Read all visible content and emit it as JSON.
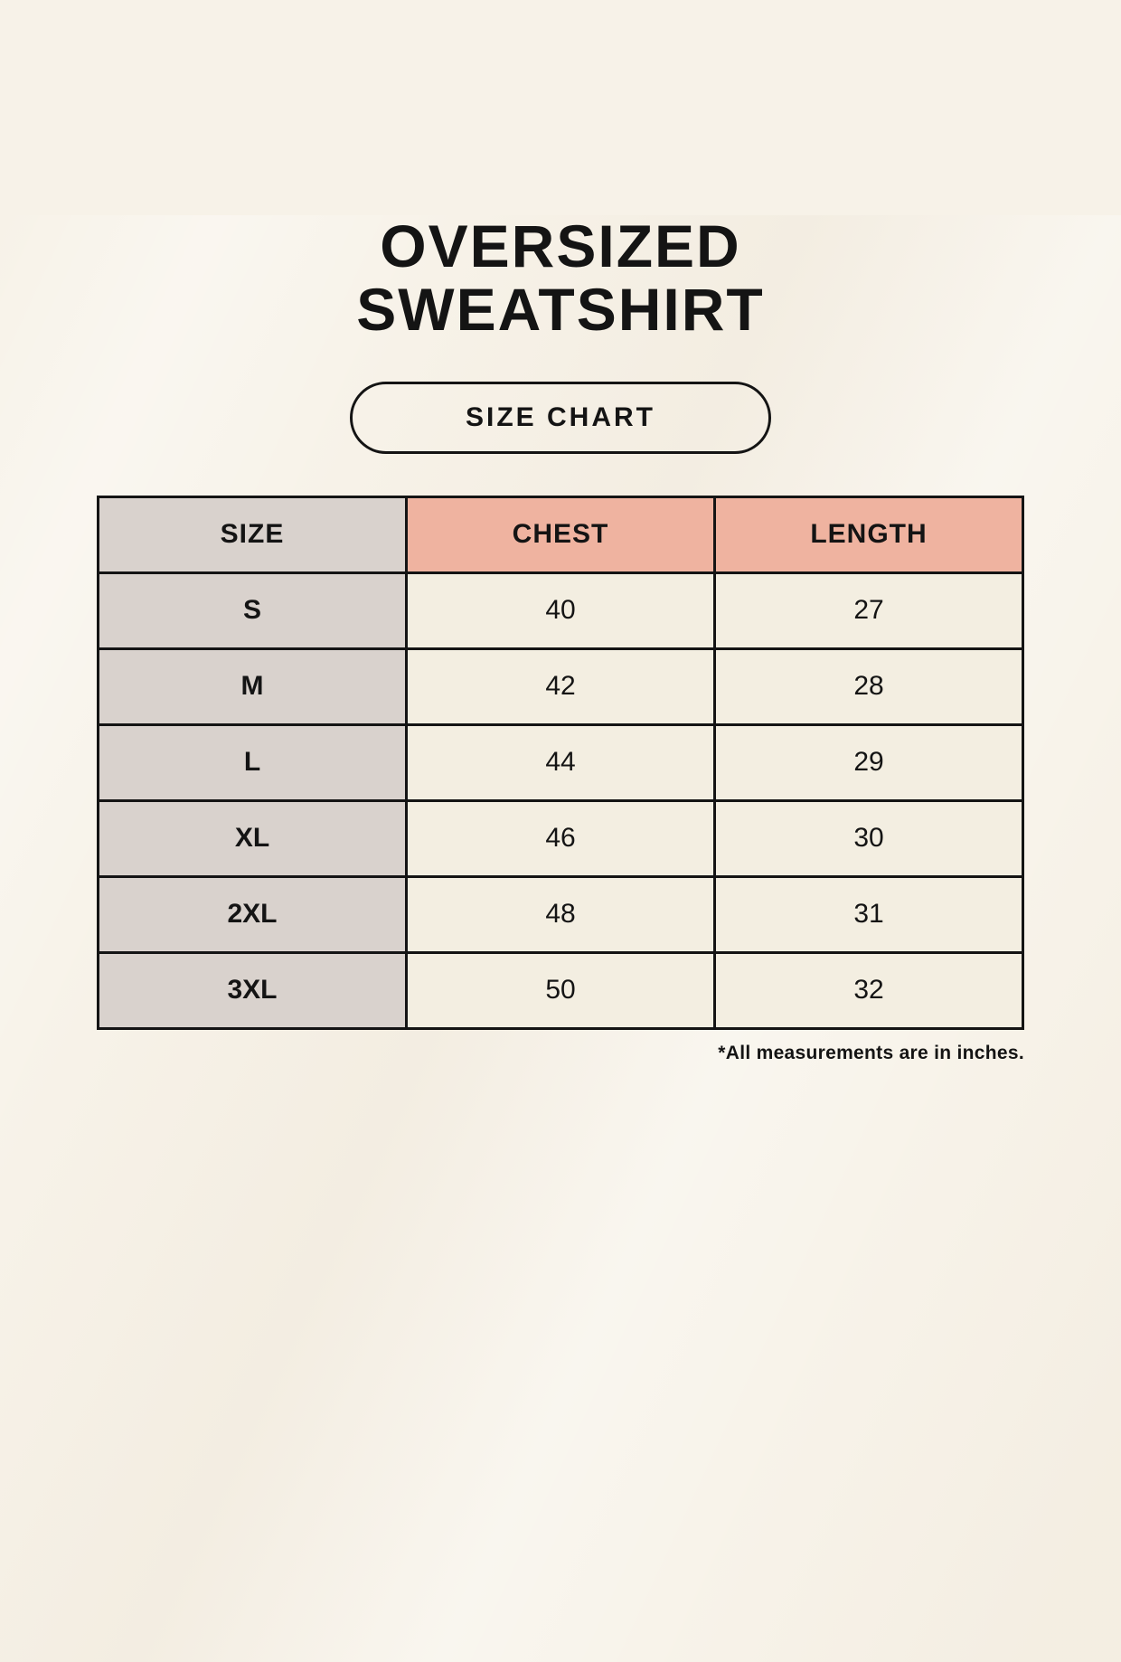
{
  "page": {
    "title_line1": "OVERSIZED",
    "title_line2": "SWEATSHIRT",
    "size_chart_label": "SIZE CHART",
    "footnote": "*All measurements are in inches."
  },
  "table": {
    "headers": [
      "SIZE",
      "CHEST",
      "LENGTH"
    ],
    "rows": [
      {
        "size": "S",
        "chest": "40",
        "length": "27"
      },
      {
        "size": "M",
        "chest": "42",
        "length": "28"
      },
      {
        "size": "L",
        "chest": "44",
        "length": "29"
      },
      {
        "size": "XL",
        "chest": "46",
        "length": "30"
      },
      {
        "size": "2XL",
        "chest": "48",
        "length": "31"
      },
      {
        "size": "3XL",
        "chest": "50",
        "length": "32"
      }
    ],
    "units": "inches"
  },
  "colors": {
    "background": "#f7f2e8",
    "header_size_bg": "#d9d2cd",
    "header_measure_bg": "#efb3a0",
    "size_column_bg": "#d9d2cd",
    "value_cell_bg": "#f3eee1",
    "border": "#141414",
    "text": "#141414"
  }
}
